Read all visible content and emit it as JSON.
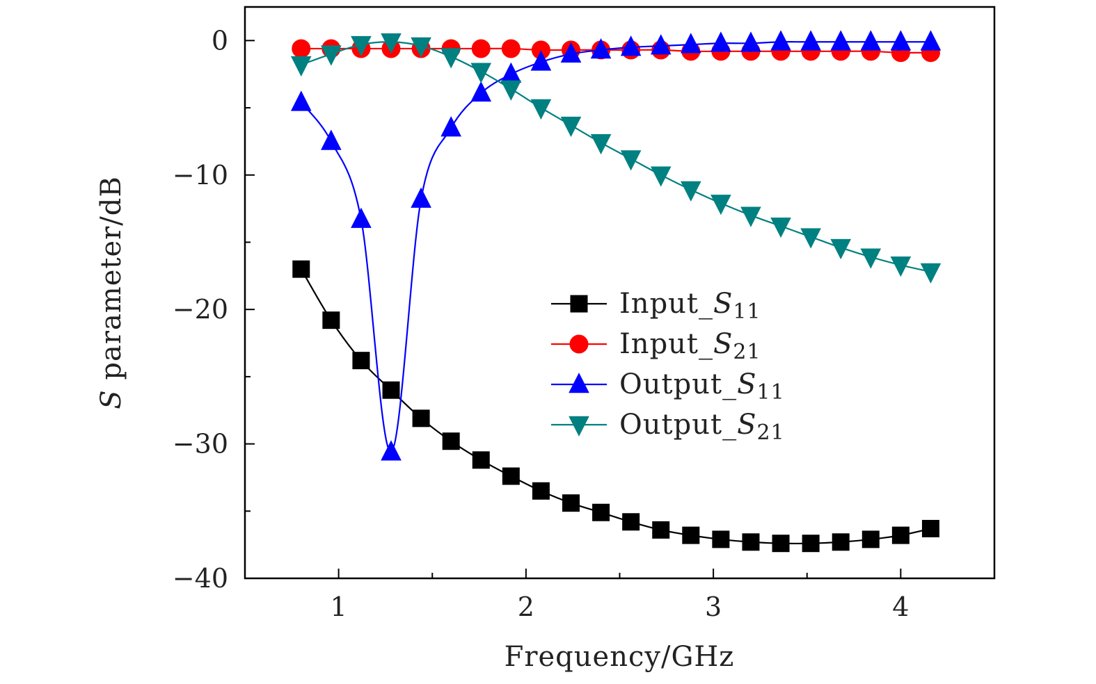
{
  "chart_data": {
    "type": "line",
    "xlabel": "Frequency/GHz",
    "ylabel_symbol": "S",
    "ylabel_rest": " parameter/dB",
    "xlim": [
      0.5,
      4.5
    ],
    "ylim": [
      -40,
      2.5
    ],
    "x_ticks": [
      1,
      2,
      3,
      4
    ],
    "y_ticks": [
      0,
      -10,
      -20,
      -30,
      -40
    ],
    "y_tick_labels": [
      "0",
      "−10",
      "−20",
      "−30",
      "−40"
    ],
    "grid": false,
    "legend_position": "center-right",
    "x": [
      0.8,
      0.96,
      1.12,
      1.28,
      1.44,
      1.6,
      1.76,
      1.92,
      2.08,
      2.24,
      2.4,
      2.56,
      2.72,
      2.88,
      3.04,
      3.2,
      3.36,
      3.52,
      3.68,
      3.84,
      4.0,
      4.16
    ],
    "series": [
      {
        "name": "Input_S11",
        "legend_base": "Input_",
        "legend_sym": "S",
        "legend_sub": "11",
        "color": "#000000",
        "marker": "square",
        "values": [
          -17.0,
          -20.8,
          -23.8,
          -26.0,
          -28.1,
          -29.8,
          -31.2,
          -32.4,
          -33.5,
          -34.4,
          -35.1,
          -35.8,
          -36.4,
          -36.8,
          -37.1,
          -37.3,
          -37.4,
          -37.4,
          -37.3,
          -37.1,
          -36.8,
          -36.3
        ]
      },
      {
        "name": "Input_S21",
        "legend_base": "Input_",
        "legend_sym": "S",
        "legend_sub": "21",
        "color": "#ff0000",
        "marker": "circle",
        "values": [
          -0.6,
          -0.6,
          -0.6,
          -0.6,
          -0.6,
          -0.6,
          -0.6,
          -0.6,
          -0.7,
          -0.7,
          -0.7,
          -0.7,
          -0.7,
          -0.8,
          -0.8,
          -0.8,
          -0.8,
          -0.8,
          -0.8,
          -0.8,
          -0.9,
          -0.9
        ]
      },
      {
        "name": "Output_S11",
        "legend_base": "Output_",
        "legend_sym": "S",
        "legend_sub": "11",
        "color": "#0000ff",
        "marker": "triangle-up",
        "values": [
          -4.6,
          -7.5,
          -13.3,
          -30.6,
          -11.8,
          -6.5,
          -3.9,
          -2.5,
          -1.6,
          -1.0,
          -0.7,
          -0.5,
          -0.4,
          -0.3,
          -0.2,
          -0.2,
          -0.1,
          -0.1,
          -0.1,
          -0.1,
          -0.1,
          -0.1
        ]
      },
      {
        "name": "Output_S21",
        "legend_base": "Output_",
        "legend_sym": "S",
        "legend_sub": "21",
        "color": "#008080",
        "marker": "triangle-down",
        "values": [
          -1.8,
          -1.0,
          -0.3,
          -0.1,
          -0.4,
          -1.2,
          -2.3,
          -3.6,
          -5.0,
          -6.3,
          -7.6,
          -8.8,
          -10.0,
          -11.1,
          -12.1,
          -13.0,
          -13.8,
          -14.6,
          -15.4,
          -16.1,
          -16.7,
          -17.2
        ]
      }
    ]
  }
}
